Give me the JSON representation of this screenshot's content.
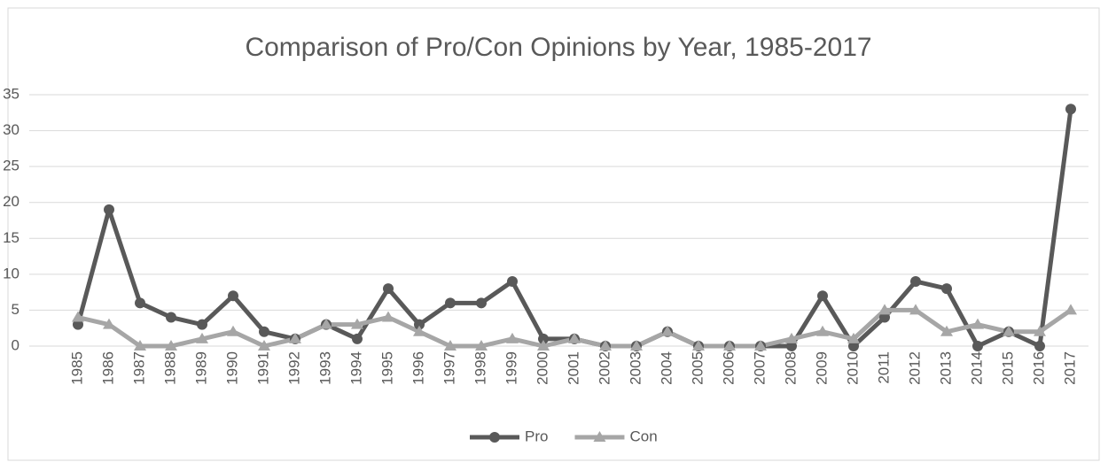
{
  "chart_data": {
    "type": "line",
    "title": "Comparison of Pro/Con Opinions by Year, 1985-2017",
    "categories": [
      "1985",
      "1986",
      "1987",
      "1988",
      "1989",
      "1990",
      "1991",
      "1992",
      "1993",
      "1994",
      "1995",
      "1996",
      "1997",
      "1998",
      "1999",
      "2000",
      "2001",
      "2002",
      "2003",
      "2004",
      "2005",
      "2006",
      "2007",
      "2008",
      "2009",
      "2010",
      "2011",
      "2012",
      "2013",
      "2014",
      "2015",
      "2016",
      "2017"
    ],
    "series": [
      {
        "name": "Pro",
        "color": "#595959",
        "marker": "circle",
        "values": [
          3,
          19,
          6,
          4,
          3,
          7,
          2,
          1,
          3,
          1,
          8,
          3,
          6,
          6,
          9,
          1,
          1,
          0,
          0,
          2,
          0,
          0,
          0,
          0,
          7,
          0,
          4,
          9,
          8,
          0,
          2,
          0,
          33
        ]
      },
      {
        "name": "Con",
        "color": "#a6a6a6",
        "marker": "triangle",
        "values": [
          4,
          3,
          0,
          0,
          1,
          2,
          0,
          1,
          3,
          3,
          4,
          2,
          0,
          0,
          1,
          0,
          1,
          0,
          0,
          2,
          0,
          0,
          0,
          1,
          2,
          1,
          5,
          5,
          2,
          3,
          2,
          2,
          5
        ]
      }
    ],
    "ylim": [
      0,
      35
    ],
    "yticks": [
      0,
      5,
      10,
      15,
      20,
      25,
      30,
      35
    ],
    "grid": true,
    "legend": "bottom"
  }
}
